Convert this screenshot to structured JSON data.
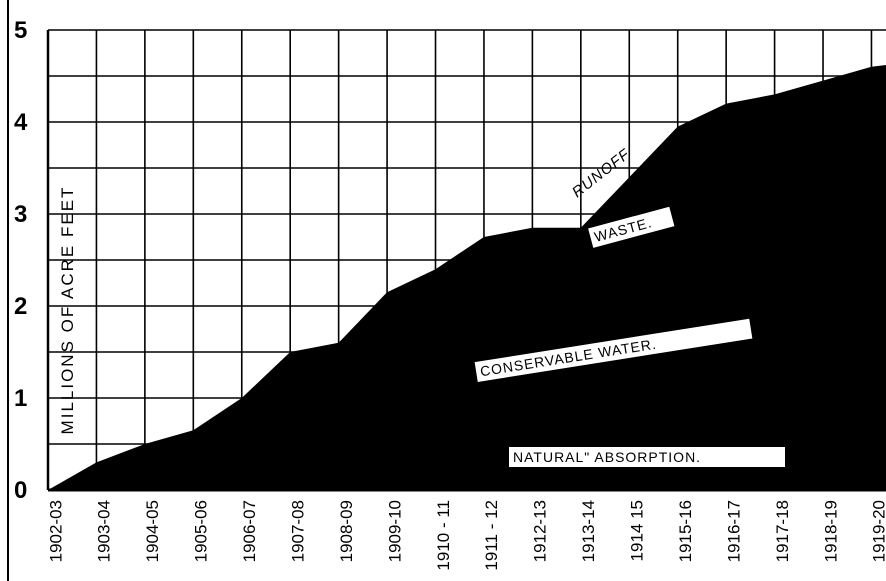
{
  "chart_data": {
    "type": "area",
    "title": "",
    "xlabel": "",
    "ylabel": "MILLIONS OF ACRE FEET",
    "ylim": [
      0,
      5
    ],
    "yticks": [
      "0",
      "1",
      "2",
      "3",
      "4",
      "5"
    ],
    "categories": [
      "1902-03",
      "1903-04",
      "1904-05",
      "1905-06",
      "1906-07",
      "1907-08",
      "1908-09",
      "1909-10",
      "1910-11",
      "1911-12",
      "1912-13",
      "1913-14",
      "1914-15",
      "1915-16",
      "1916-17",
      "1917-18",
      "1918-19",
      "1919-20"
    ],
    "tick_labels": [
      "1902-03",
      "1903-04",
      "1904-05",
      "1905-06",
      "1906-07",
      "1907-08",
      "1908-09",
      "1909-10",
      "1910 - 11",
      "1911 - 12",
      "1912-13",
      "1913-14",
      "1914 15",
      "1915-16",
      "1916-17",
      "1917-18",
      "1918-19",
      "1919-20"
    ],
    "grid": true,
    "series": [
      {
        "name": "RUNOFF",
        "color": "#000000",
        "values": [
          0.0,
          0.3,
          0.5,
          0.65,
          1.0,
          1.5,
          1.6,
          2.15,
          2.4,
          2.75,
          2.85,
          2.85,
          3.4,
          3.95,
          4.2,
          4.3,
          4.45,
          4.6
        ]
      }
    ],
    "annotations": [
      {
        "text": "RUNOFF",
        "style": "handwritten-on-curve"
      },
      {
        "text": "WASTE.",
        "style": "white-label"
      },
      {
        "text": "CONSERVABLE WATER.",
        "style": "white-label"
      },
      {
        "text": "NATURAL\" ABSORPTION.",
        "style": "white-label"
      }
    ]
  }
}
